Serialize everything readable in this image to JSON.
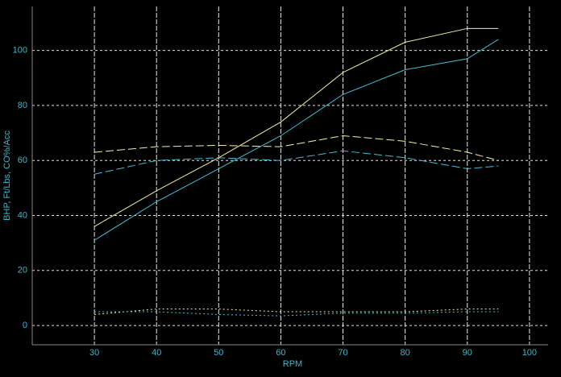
{
  "chart_data": {
    "type": "line",
    "x_label": "RPM",
    "y_label": "BHP, Ft/Lbs, CO%/Acc",
    "x": [
      30,
      40,
      50,
      60,
      70,
      80,
      90,
      95
    ],
    "series": [
      {
        "color": "#f2f0a0",
        "dash": "solid",
        "values": [
          36,
          49,
          61,
          74,
          92,
          103,
          108,
          108
        ]
      },
      {
        "color": "#3fc0d4",
        "dash": "solid",
        "values": [
          31,
          45,
          57,
          69,
          84,
          93,
          97,
          104
        ]
      },
      {
        "color": "#f2f0a0",
        "dash": "dashed",
        "values": [
          63,
          65,
          65.5,
          65,
          69,
          67,
          63,
          60
        ]
      },
      {
        "color": "#3fc0d4",
        "dash": "dashed",
        "values": [
          55,
          60,
          61,
          60,
          63.5,
          61,
          57,
          58
        ]
      },
      {
        "color": "#f2f0a0",
        "dash": "dotted",
        "values": [
          4,
          6,
          6,
          5,
          5,
          5,
          6,
          6
        ]
      },
      {
        "color": "#3fc0d4",
        "dash": "dotted",
        "values": [
          5,
          5,
          4,
          3.5,
          4.5,
          4.5,
          5,
          5
        ]
      }
    ],
    "xlim": [
      20,
      103
    ],
    "ylim": [
      -7,
      116
    ],
    "xticks": [
      30,
      40,
      50,
      60,
      70,
      80,
      90,
      100
    ],
    "yticks": [
      0,
      20,
      40,
      60,
      80,
      100
    ],
    "grid": true
  }
}
